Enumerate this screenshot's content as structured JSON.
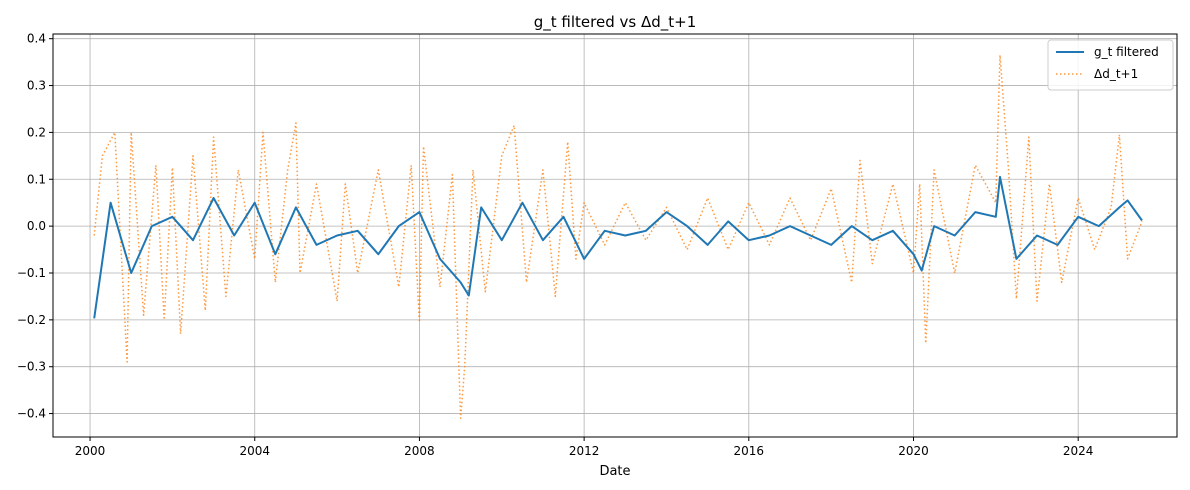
{
  "chart_data": {
    "type": "line",
    "title": "g_t filtered vs Δd_t+1",
    "xlabel": "Date",
    "ylabel": "",
    "xlim": [
      1999.1,
      2026.4
    ],
    "ylim": [
      -0.45,
      0.41
    ],
    "x_ticks": [
      2000,
      2004,
      2008,
      2012,
      2016,
      2020,
      2024
    ],
    "y_ticks": [
      -0.4,
      -0.3,
      -0.2,
      -0.1,
      0.0,
      0.1,
      0.2,
      0.3,
      0.4
    ],
    "grid": true,
    "legend_position": "top-right",
    "series": [
      {
        "name": "g_t filtered",
        "style": "solid",
        "color": "#1f77b4",
        "x": [
          2000.1,
          2000.5,
          2001.0,
          2001.5,
          2002.0,
          2002.5,
          2003.0,
          2003.5,
          2004.0,
          2004.5,
          2005.0,
          2005.5,
          2006.0,
          2006.5,
          2007.0,
          2007.5,
          2008.0,
          2008.5,
          2009.0,
          2009.2,
          2009.5,
          2010.0,
          2010.5,
          2011.0,
          2011.5,
          2012.0,
          2012.5,
          2013.0,
          2013.5,
          2014.0,
          2014.5,
          2015.0,
          2015.5,
          2016.0,
          2016.5,
          2017.0,
          2017.5,
          2018.0,
          2018.5,
          2019.0,
          2019.5,
          2020.0,
          2020.2,
          2020.5,
          2021.0,
          2021.5,
          2022.0,
          2022.1,
          2022.5,
          2023.0,
          2023.5,
          2024.0,
          2024.5,
          2025.0,
          2025.2,
          2025.55
        ],
        "values": [
          -0.197,
          0.05,
          -0.1,
          0.0,
          0.02,
          -0.03,
          0.06,
          -0.02,
          0.05,
          -0.06,
          0.04,
          -0.04,
          -0.02,
          -0.01,
          -0.06,
          0.0,
          0.03,
          -0.07,
          -0.12,
          -0.148,
          0.04,
          -0.03,
          0.05,
          -0.03,
          0.02,
          -0.07,
          -0.01,
          -0.02,
          -0.01,
          0.03,
          0.0,
          -0.04,
          0.01,
          -0.03,
          -0.02,
          0.0,
          -0.02,
          -0.04,
          0.0,
          -0.03,
          -0.01,
          -0.06,
          -0.095,
          0.0,
          -0.02,
          0.03,
          0.02,
          0.105,
          -0.07,
          -0.02,
          -0.04,
          0.02,
          0.0,
          0.04,
          0.055,
          0.012
        ]
      },
      {
        "name": "Δd_t+1",
        "style": "dotted",
        "color": "#ff7f0e",
        "x": [
          2000.1,
          2000.3,
          2000.6,
          2000.9,
          2001.0,
          2001.3,
          2001.6,
          2001.8,
          2002.0,
          2002.2,
          2002.5,
          2002.8,
          2003.0,
          2003.3,
          2003.6,
          2004.0,
          2004.2,
          2004.5,
          2004.8,
          2005.0,
          2005.1,
          2005.5,
          2006.0,
          2006.2,
          2006.5,
          2007.0,
          2007.5,
          2007.8,
          2008.0,
          2008.1,
          2008.5,
          2008.8,
          2009.0,
          2009.1,
          2009.3,
          2009.6,
          2010.0,
          2010.3,
          2010.6,
          2011.0,
          2011.3,
          2011.6,
          2011.8,
          2012.0,
          2012.5,
          2013.0,
          2013.5,
          2014.0,
          2014.5,
          2015.0,
          2015.5,
          2016.0,
          2016.5,
          2017.0,
          2017.5,
          2018.0,
          2018.5,
          2018.7,
          2019.0,
          2019.5,
          2020.0,
          2020.15,
          2020.3,
          2020.5,
          2021.0,
          2021.5,
          2022.0,
          2022.1,
          2022.3,
          2022.5,
          2022.8,
          2023.0,
          2023.3,
          2023.6,
          2024.0,
          2024.4,
          2024.8,
          2025.0,
          2025.2,
          2025.55
        ],
        "values": [
          -0.02,
          0.15,
          0.2,
          -0.29,
          0.2,
          -0.19,
          0.13,
          -0.2,
          0.125,
          -0.23,
          0.15,
          -0.18,
          0.19,
          -0.15,
          0.12,
          -0.07,
          0.2,
          -0.12,
          0.12,
          0.22,
          -0.1,
          0.09,
          -0.16,
          0.09,
          -0.1,
          0.12,
          -0.13,
          0.13,
          -0.205,
          0.17,
          -0.13,
          0.11,
          -0.41,
          -0.3,
          0.12,
          -0.14,
          0.15,
          0.215,
          -0.12,
          0.12,
          -0.15,
          0.18,
          -0.07,
          0.05,
          -0.04,
          0.05,
          -0.03,
          0.04,
          -0.05,
          0.06,
          -0.05,
          0.05,
          -0.04,
          0.06,
          -0.03,
          0.08,
          -0.12,
          0.14,
          -0.08,
          0.09,
          -0.1,
          0.09,
          -0.25,
          0.12,
          -0.1,
          0.13,
          0.05,
          0.365,
          0.13,
          -0.155,
          0.19,
          -0.16,
          0.09,
          -0.12,
          0.06,
          -0.05,
          0.04,
          0.195,
          -0.07,
          0.01
        ]
      }
    ]
  }
}
